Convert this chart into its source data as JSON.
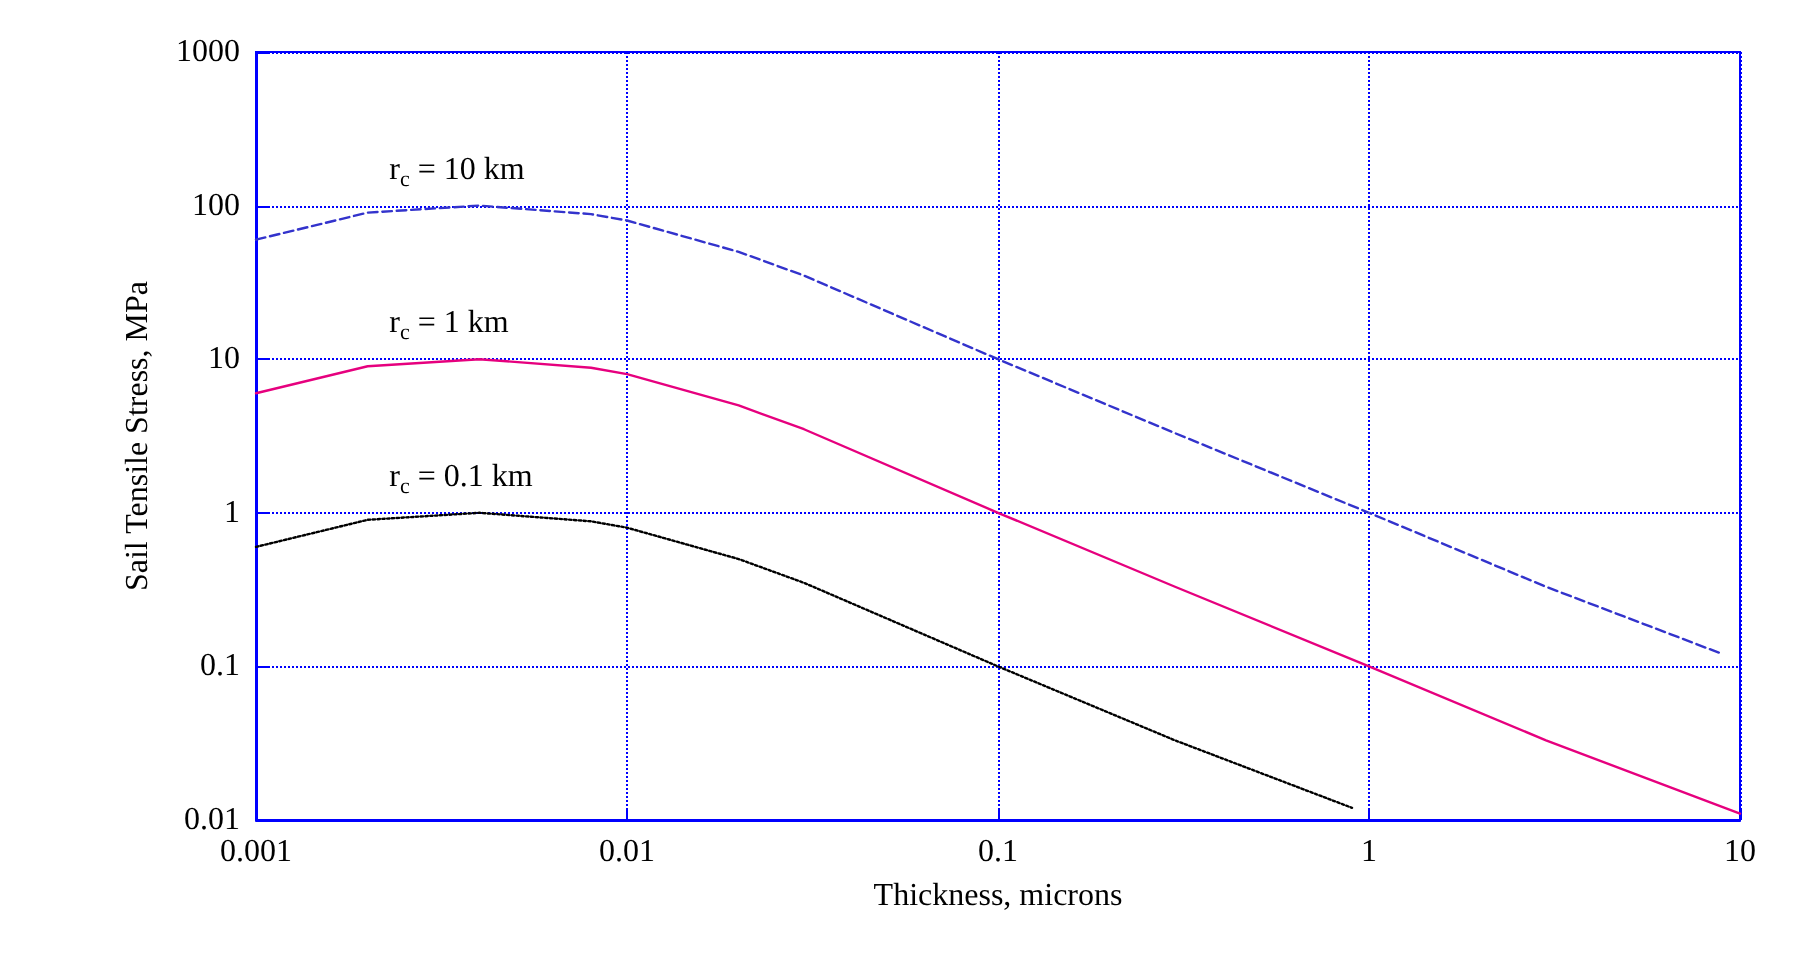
{
  "chart_data": {
    "type": "line",
    "xlabel": "Thickness, microns",
    "ylabel": "Sail Tensile Stress, MPa",
    "log": "xy",
    "grid": true,
    "marker": "none",
    "xlim": [
      0.001,
      10
    ],
    "xticks": [
      0.001,
      0.01,
      0.1,
      1,
      10
    ],
    "ylim": [
      0.01,
      1000
    ],
    "yticks": [
      0.01,
      0.1,
      1,
      10,
      100,
      1000
    ],
    "series": [
      {
        "color": "#3333cc",
        "line_style": "dashed",
        "x": [
          0.001,
          0.002,
          0.004,
          0.008,
          0.01,
          0.02,
          0.03,
          0.1,
          0.3,
          1,
          3,
          9
        ],
        "values": [
          60,
          90,
          100,
          88,
          80,
          50,
          35,
          10,
          3.3,
          1,
          0.33,
          0.12
        ]
      },
      {
        "color": "#e6007e",
        "line_style": "solid",
        "x": [
          0.001,
          0.002,
          0.004,
          0.008,
          0.01,
          0.02,
          0.03,
          0.1,
          0.3,
          1,
          3,
          10
        ],
        "values": [
          6,
          9,
          10,
          8.8,
          8,
          5,
          3.5,
          1,
          0.33,
          0.1,
          0.033,
          0.011
        ]
      },
      {
        "color": "#000000",
        "line_style": "dotted",
        "x": [
          0.001,
          0.002,
          0.004,
          0.008,
          0.01,
          0.02,
          0.03,
          0.1,
          0.3,
          0.9
        ],
        "values": [
          0.6,
          0.9,
          1,
          0.88,
          0.8,
          0.5,
          0.35,
          0.1,
          0.033,
          0.012
        ]
      }
    ],
    "annotations": [
      "r$_{c}$ = 10 km",
      "r$_{c}$ = 1 km",
      "r$_{c}$ = 0.1 km"
    ]
  }
}
